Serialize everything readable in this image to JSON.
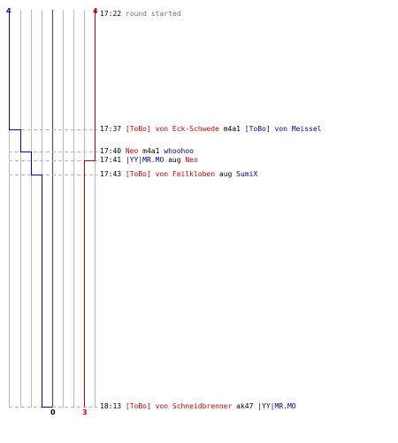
{
  "scores": {
    "blue_top": "4",
    "red_top": "4",
    "blue_bottom": "0",
    "red_bottom": "3"
  },
  "colors": {
    "blue": "#0000cc",
    "red": "#cc0000",
    "grid": "#bbbbbb",
    "center": "#555555",
    "dash": "#bbbbbb"
  },
  "events": [
    {
      "time": "17:22",
      "parts": [
        {
          "text": "round started",
          "color": "gray"
        }
      ]
    },
    {
      "time": "17:37",
      "parts": [
        {
          "text": "[ToBo] von Eck-Schwede",
          "color": "red"
        },
        {
          "text": " m4a1 ",
          "color": "blk"
        },
        {
          "text": "[ToBo] von Meissel",
          "color": "blue"
        }
      ]
    },
    {
      "time": "17:40",
      "parts": [
        {
          "text": "Neo",
          "color": "red"
        },
        {
          "text": " m4a1 ",
          "color": "blk"
        },
        {
          "text": "whoohoo",
          "color": "blue"
        }
      ]
    },
    {
      "time": "17:41",
      "parts": [
        {
          "text": "|YY|MR.MO",
          "color": "blue"
        },
        {
          "text": " aug ",
          "color": "blk"
        },
        {
          "text": "Neo",
          "color": "red"
        }
      ]
    },
    {
      "time": "17:43",
      "parts": [
        {
          "text": "[ToBo] von Feilkloben",
          "color": "red"
        },
        {
          "text": " aug ",
          "color": "blk"
        },
        {
          "text": "SumiX",
          "color": "blue"
        }
      ]
    },
    {
      "time": "18:13",
      "parts": [
        {
          "text": "[ToBo] von Schneidbrenner",
          "color": "red"
        },
        {
          "text": " ak47 ",
          "color": "blk"
        },
        {
          "text": "|YY|MR.MO",
          "color": "blue"
        }
      ]
    }
  ]
}
